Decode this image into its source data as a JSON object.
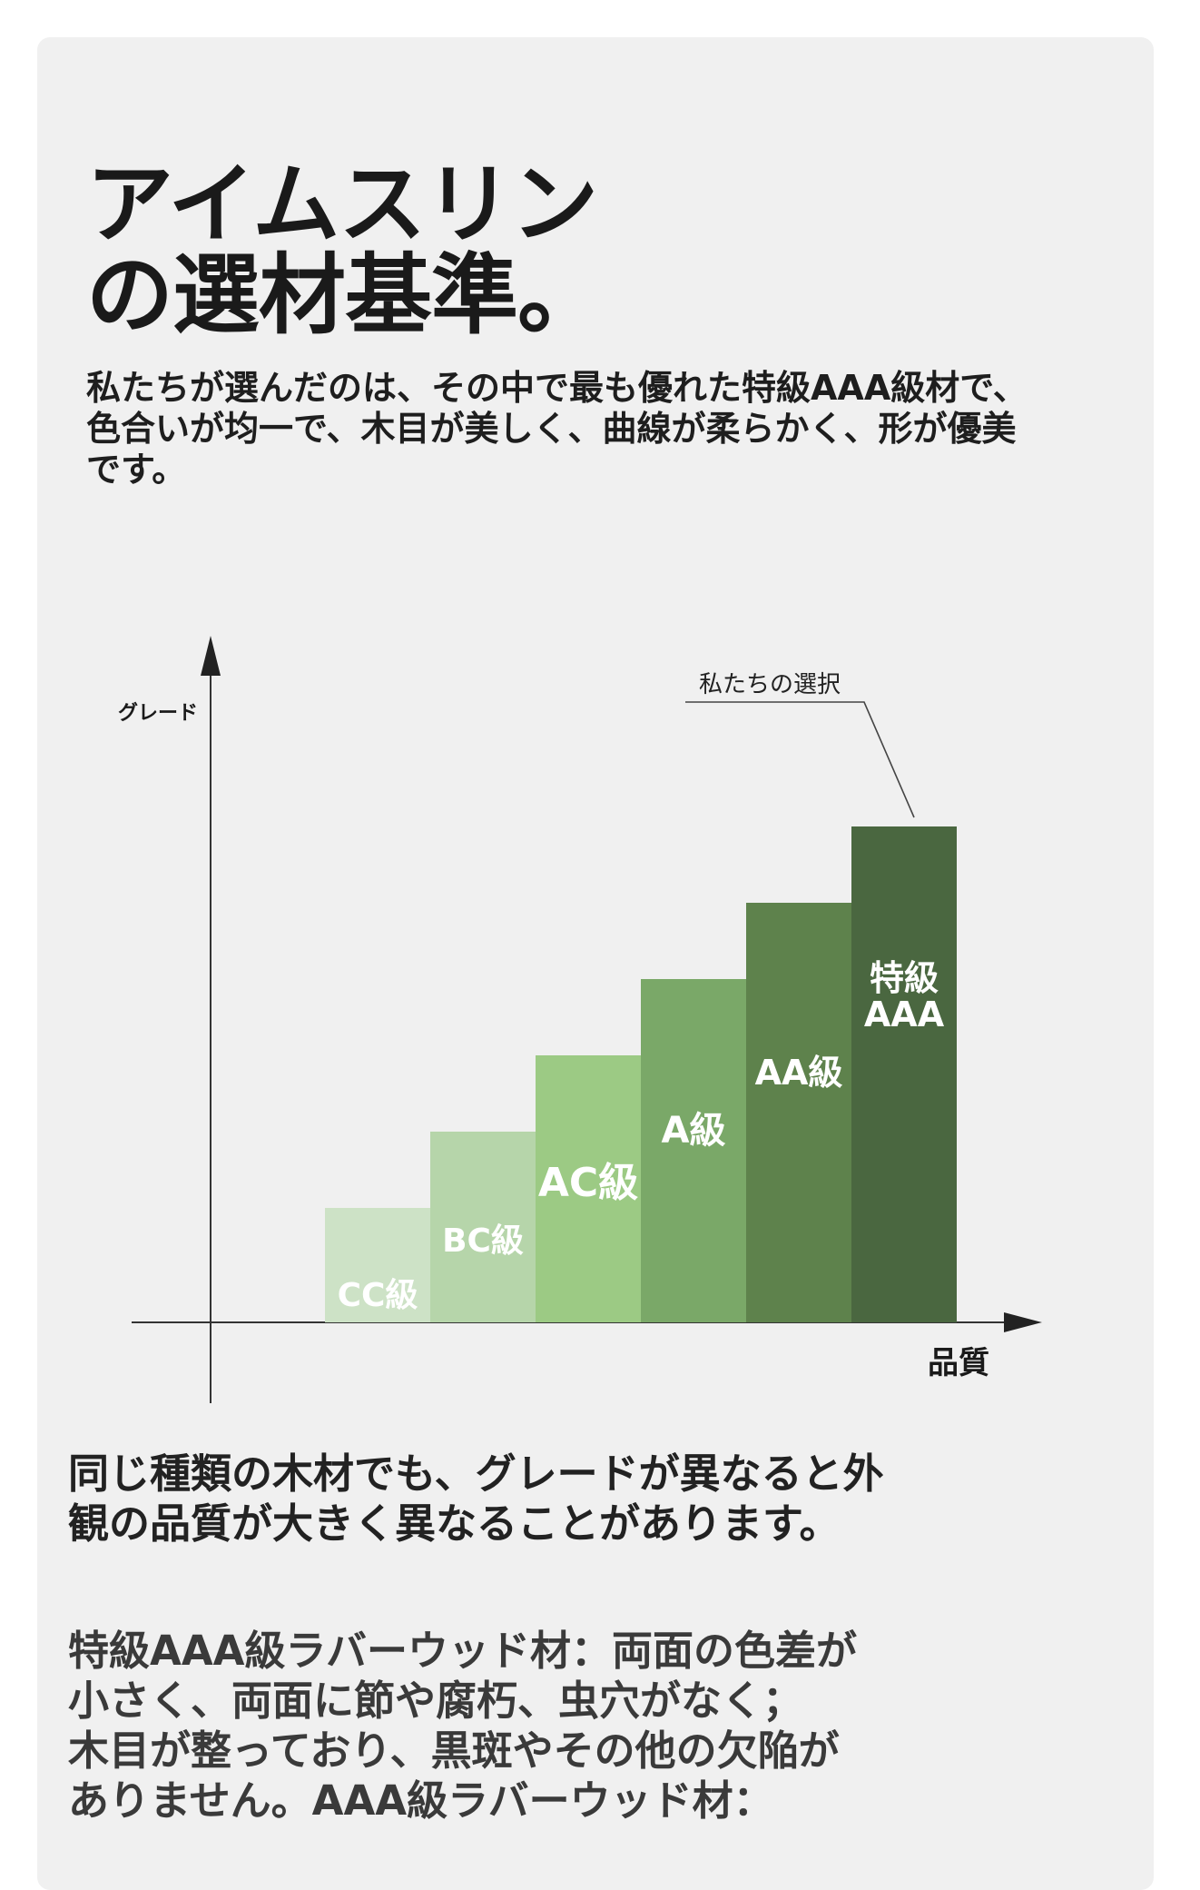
{
  "heading": {
    "lines": [
      "アイムスリン",
      "の選材基準。"
    ]
  },
  "intro": {
    "lines": [
      "私たちが選んだのは、その中で最も優れた特級AAA級材で、",
      "色合いが均一で、木目が美しく、曲線が柔らかく、形が優美",
      "です。"
    ]
  },
  "chart_data": {
    "type": "bar",
    "ylabel": "グレード",
    "xlabel": "品質",
    "categories": [
      "CC級",
      "BC級",
      "AC級",
      "A級",
      "AA級",
      "特級AAA"
    ],
    "values": [
      1,
      2,
      3,
      4,
      5,
      6
    ],
    "colors": [
      "#cde2c6",
      "#b6d5aa",
      "#9cca84",
      "#7aa868",
      "#5e824c",
      "#4a6740"
    ],
    "label_colors": [
      "#ffffff",
      "#ffffff",
      "#ffffff",
      "#ffffff",
      "#ffffff",
      "#ffffff"
    ],
    "annotation": "私たちの選択",
    "annotation_target": "特級AAA",
    "grid": false,
    "ylim": [
      0,
      7
    ]
  },
  "section": {
    "heading_lines": [
      "同じ種類の木材でも、グレードが異なると外",
      "観の品質が大きく異なることがあります。"
    ],
    "detail_lines": [
      "特級AAA級ラバーウッド材：両面の色差が",
      "小さく、両面に節や腐朽、虫穴がなく；",
      "木目が整っており、黒斑やその他の欠陥が",
      "ありません。AAA級ラバーウッド材："
    ]
  }
}
